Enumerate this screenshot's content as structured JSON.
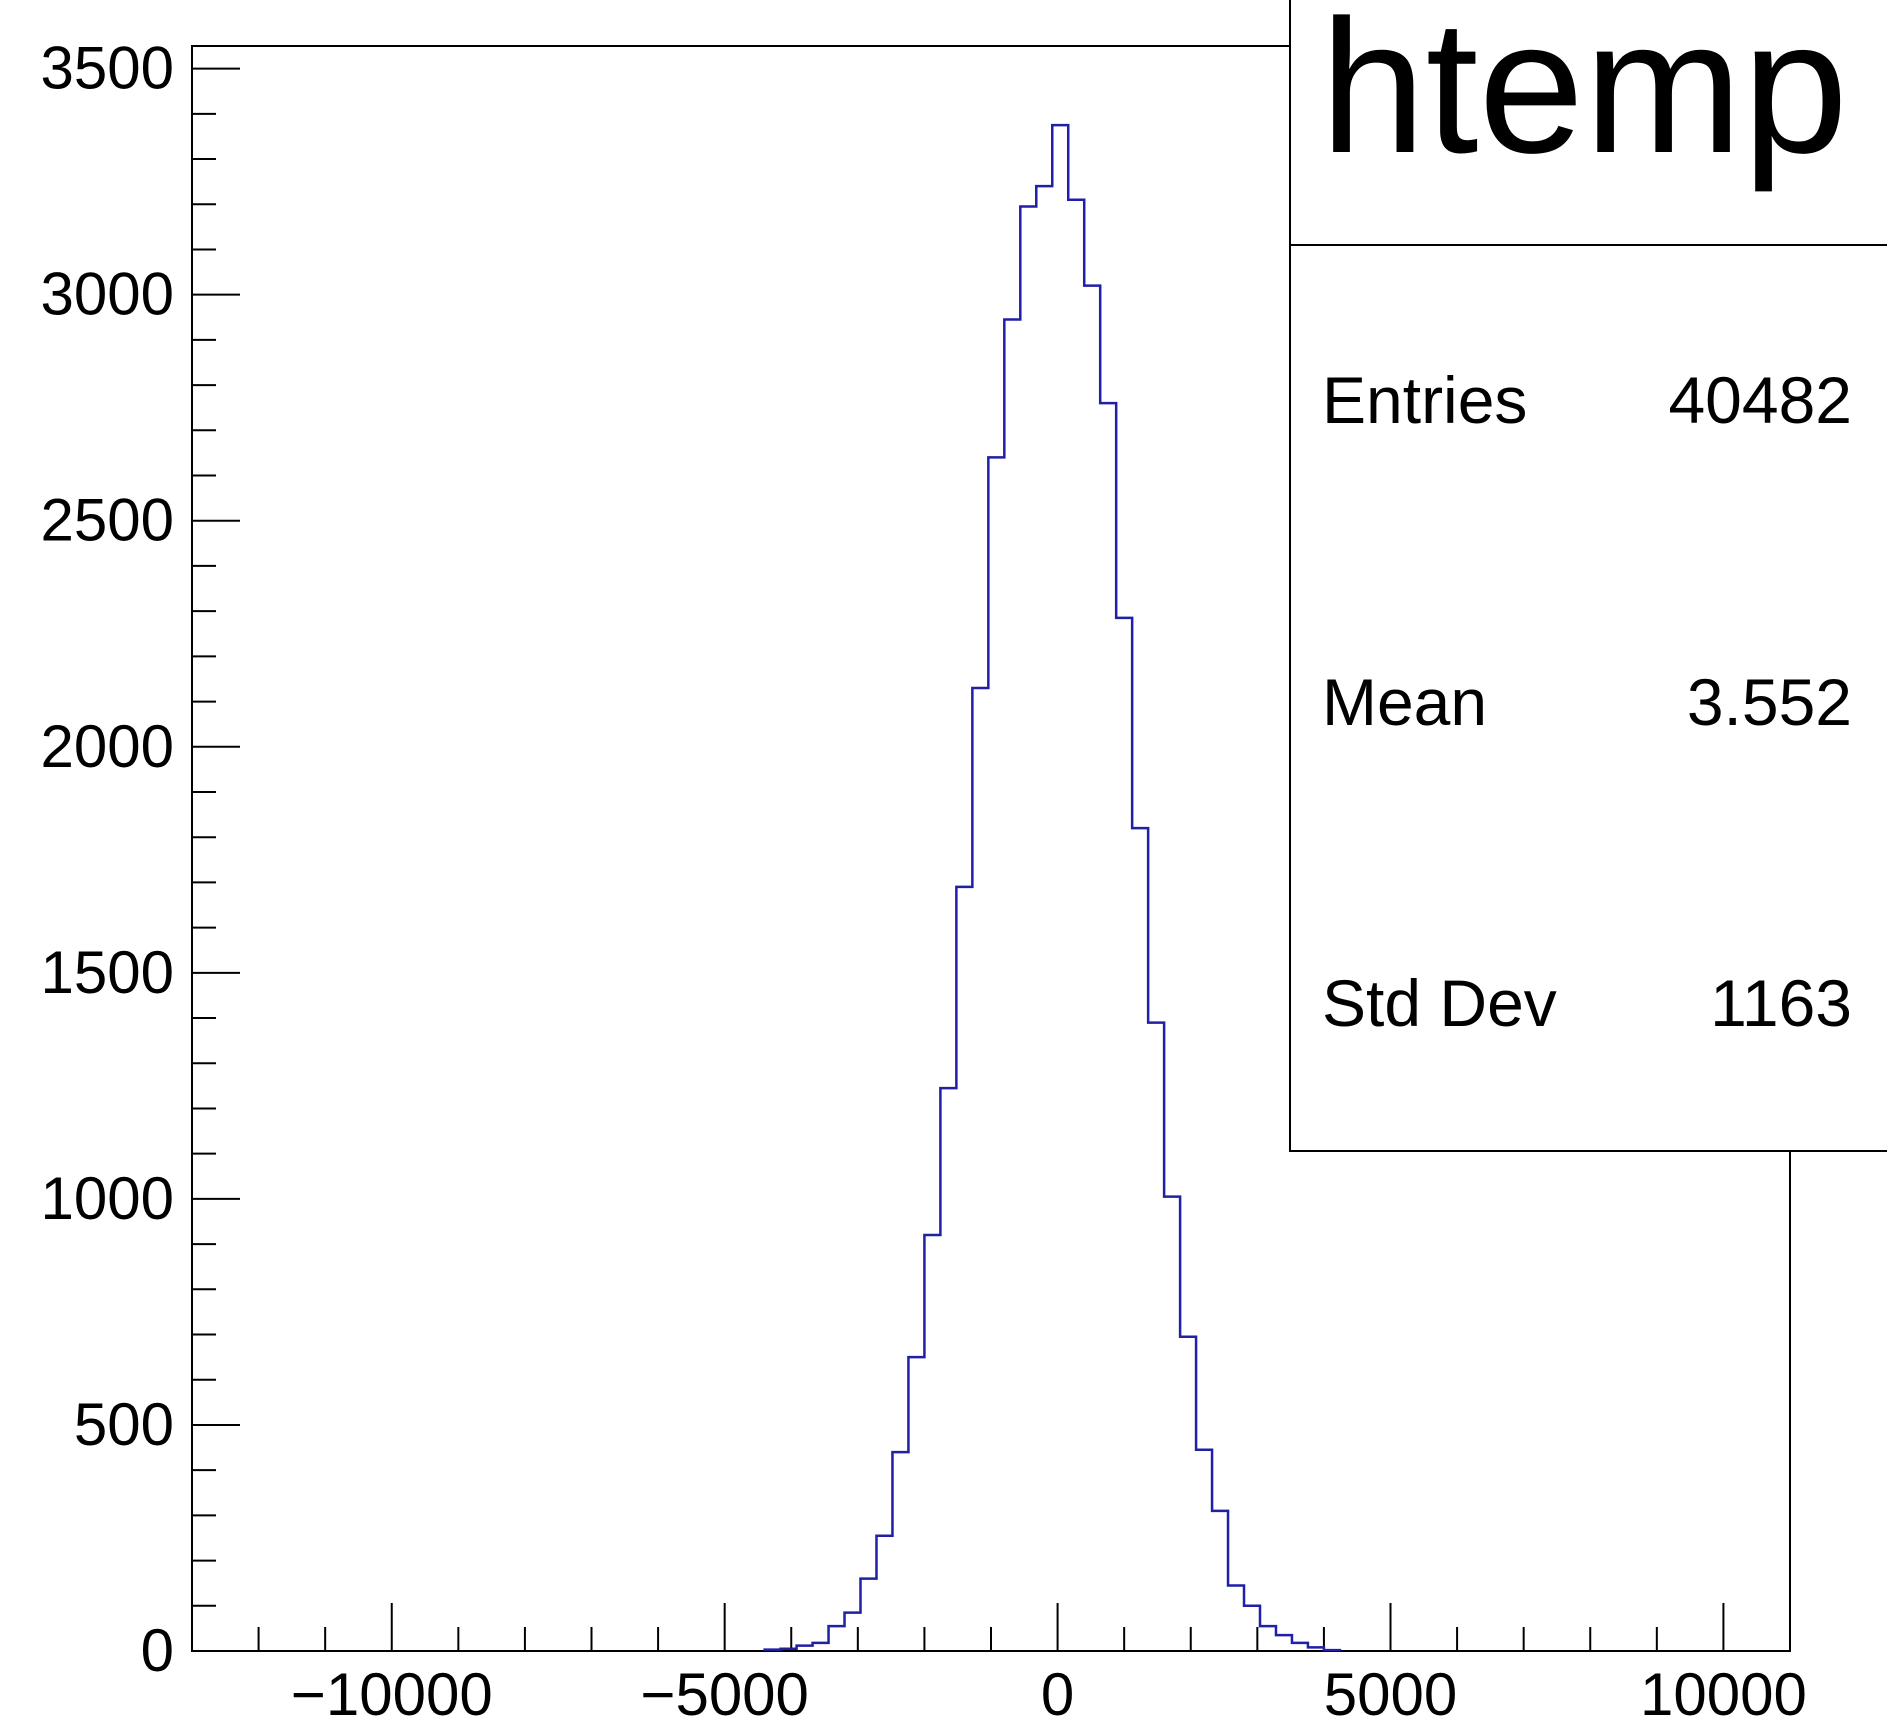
{
  "chart_data": {
    "type": "histogram",
    "title": "",
    "xlabel": "",
    "ylabel": "",
    "xlim": [
      -13000,
      11000
    ],
    "ylim": [
      0,
      3550
    ],
    "x_ticks": [
      -10000,
      -5000,
      0,
      5000,
      10000
    ],
    "x_tick_labels": [
      "−10000",
      "−5000",
      "0",
      "5000",
      "10000"
    ],
    "y_ticks": [
      0,
      500,
      1000,
      1500,
      2000,
      2500,
      3000,
      3500
    ],
    "y_tick_labels": [
      "0",
      "500",
      "1000",
      "1500",
      "2000",
      "2500",
      "3000",
      "3500"
    ],
    "series": [
      {
        "color": "#1f1fa8",
        "bin_width": 240,
        "bin_starts": [
          -4400,
          -4160,
          -3920,
          -3680,
          -3440,
          -3200,
          -2960,
          -2720,
          -2480,
          -2240,
          -2000,
          -1760,
          -1520,
          -1280,
          -1040,
          -800,
          -560,
          -320,
          -80,
          160,
          400,
          640,
          880,
          1120,
          1360,
          1600,
          1840,
          2080,
          2320,
          2560,
          2800,
          3040,
          3280,
          3520,
          3760,
          4000
        ],
        "values": [
          3,
          5,
          12,
          18,
          55,
          85,
          160,
          255,
          440,
          650,
          920,
          1245,
          1690,
          2130,
          2640,
          2945,
          3195,
          3240,
          3375,
          3210,
          3020,
          2760,
          2285,
          1820,
          1390,
          1005,
          695,
          445,
          310,
          145,
          100,
          55,
          35,
          18,
          8,
          2
        ]
      }
    ],
    "stats_box": {
      "title": "htemp",
      "rows": [
        {
          "label": "Entries",
          "value": "40482"
        },
        {
          "label": "Mean",
          "value": "3.552"
        },
        {
          "label": "Std Dev",
          "value": "1163"
        }
      ]
    },
    "grid": false,
    "legend": "none"
  }
}
